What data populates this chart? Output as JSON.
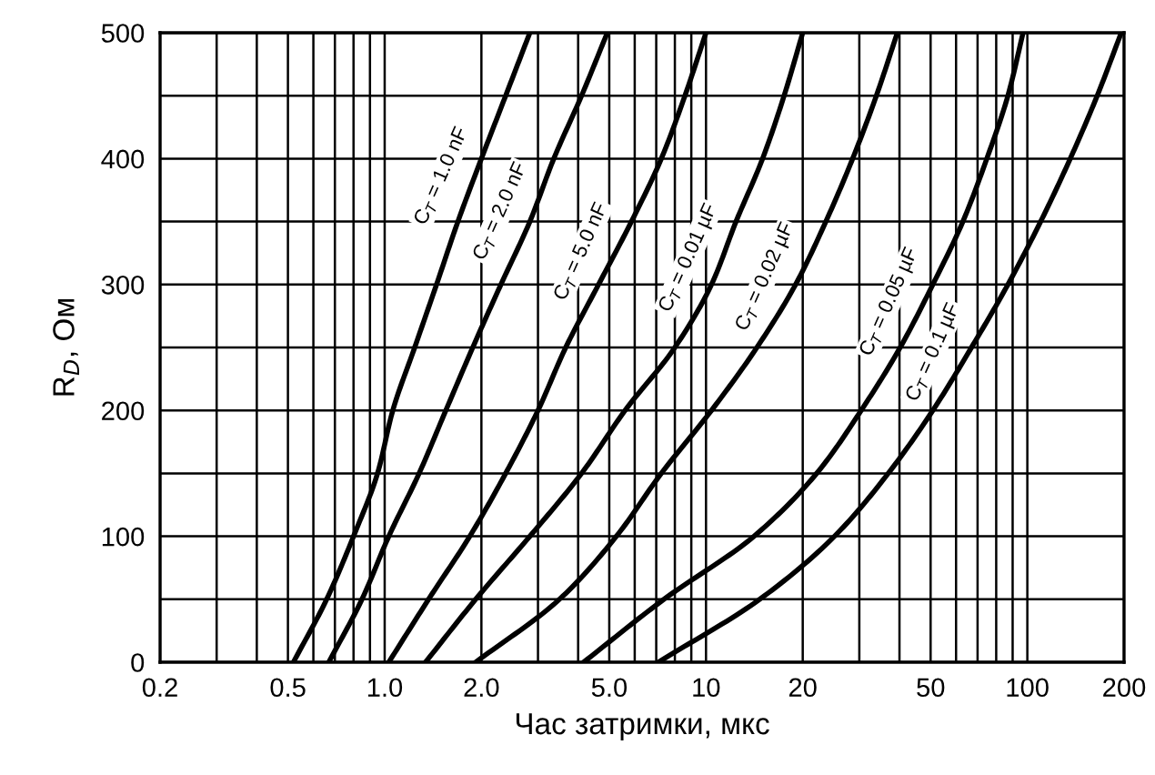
{
  "chart_data": {
    "type": "line",
    "xlabel": "Час затримки, мкс",
    "ylabel": "R$_{D}$, Ом",
    "log": "x",
    "grid": true,
    "marker": "none",
    "line_style": "solid",
    "xlim": [
      0.2,
      200
    ],
    "ylim": [
      0,
      500
    ],
    "xticks": [
      {
        "value": 0.2,
        "label": "0.2"
      },
      {
        "value": 0.3,
        "label": null
      },
      {
        "value": 0.4,
        "label": null
      },
      {
        "value": 0.5,
        "label": "0.5"
      },
      {
        "value": 0.6,
        "label": null
      },
      {
        "value": 0.7,
        "label": null
      },
      {
        "value": 0.8,
        "label": null
      },
      {
        "value": 0.9,
        "label": null
      },
      {
        "value": 1,
        "label": "1.0"
      },
      {
        "value": 2,
        "label": "2.0"
      },
      {
        "value": 3,
        "label": null
      },
      {
        "value": 4,
        "label": null
      },
      {
        "value": 5,
        "label": "5.0"
      },
      {
        "value": 6,
        "label": null
      },
      {
        "value": 7,
        "label": null
      },
      {
        "value": 8,
        "label": null
      },
      {
        "value": 9,
        "label": null
      },
      {
        "value": 10,
        "label": "10"
      },
      {
        "value": 20,
        "label": "20"
      },
      {
        "value": 30,
        "label": null
      },
      {
        "value": 40,
        "label": null
      },
      {
        "value": 50,
        "label": "50"
      },
      {
        "value": 60,
        "label": null
      },
      {
        "value": 70,
        "label": null
      },
      {
        "value": 80,
        "label": null
      },
      {
        "value": 90,
        "label": null
      },
      {
        "value": 100,
        "label": "100"
      },
      {
        "value": 200,
        "label": "200"
      }
    ],
    "yticks": [
      0,
      {
        "value": 50,
        "label": null
      },
      100,
      {
        "value": 150,
        "label": null
      },
      200,
      {
        "value": 250,
        "label": null
      },
      300,
      {
        "value": 350,
        "label": null
      },
      400,
      {
        "value": 450,
        "label": null
      },
      500
    ],
    "series": [
      {
        "name": "C$_{T}$ = 1.0 nF",
        "color": "#000000",
        "x": [
          0.52,
          0.66,
          0.8,
          0.95,
          1.06,
          1.24,
          1.45,
          1.69,
          2.0,
          2.38,
          2.83
        ],
        "values": [
          0,
          50,
          100,
          150,
          200,
          250,
          300,
          350,
          400,
          450,
          500
        ]
      },
      {
        "name": "C$_{T}$ = 2.0 nF",
        "color": "#000000",
        "x": [
          0.67,
          0.85,
          1.03,
          1.28,
          1.55,
          1.88,
          2.3,
          2.83,
          3.36,
          4.1,
          4.93
        ],
        "values": [
          0,
          50,
          100,
          150,
          200,
          250,
          300,
          350,
          400,
          450,
          500
        ]
      },
      {
        "name": "C$_{T}$ = 5.0 nF",
        "color": "#000000",
        "x": [
          1.03,
          1.37,
          1.84,
          2.38,
          3.0,
          3.66,
          4.63,
          5.86,
          7.26,
          8.6,
          10
        ],
        "values": [
          0,
          50,
          100,
          150,
          200,
          250,
          300,
          350,
          400,
          450,
          500
        ]
      },
      {
        "name": "C$_{T}$ = 0.01 µF",
        "color": "#000000",
        "x": [
          1.34,
          1.92,
          2.83,
          4.1,
          5.6,
          8.0,
          10.4,
          12.4,
          15.0,
          17.5,
          20
        ],
        "values": [
          0,
          50,
          100,
          150,
          200,
          250,
          300,
          350,
          400,
          450,
          500
        ]
      },
      {
        "name": "C$_{T}$ = 0.02 µF",
        "color": "#000000",
        "x": [
          1.92,
          3.5,
          5.26,
          7.26,
          10.4,
          14.4,
          19.0,
          23.6,
          28.6,
          33.9,
          39.4
        ],
        "values": [
          0,
          50,
          100,
          150,
          200,
          250,
          300,
          350,
          400,
          450,
          500
        ]
      },
      {
        "name": "C$_{T}$ = 0.05 µF",
        "color": "#000000",
        "x": [
          4.16,
          7.4,
          14.1,
          22.1,
          30.4,
          40.2,
          50.8,
          63,
          74.8,
          87,
          97
        ],
        "values": [
          0,
          50,
          100,
          150,
          200,
          250,
          300,
          350,
          400,
          450,
          500
        ]
      },
      {
        "name": "C$_{T}$ = 0.1 µF",
        "color": "#000000",
        "x": [
          7.1,
          14.7,
          25.1,
          36.9,
          50.8,
          67,
          87,
          110,
          136,
          165,
          196
        ],
        "values": [
          0,
          50,
          100,
          150,
          200,
          250,
          300,
          350,
          400,
          450,
          500
        ]
      }
    ]
  }
}
